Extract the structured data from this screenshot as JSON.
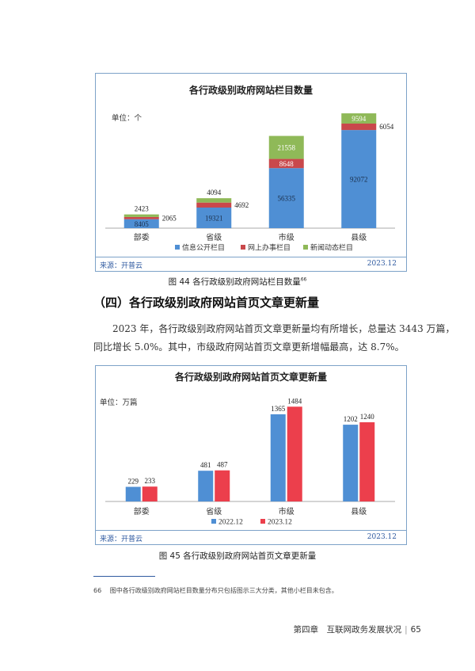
{
  "figure44": {
    "title": "各行政级别政府网站栏目数量",
    "unit": "单位：个",
    "source": "来源：开普云",
    "date": "2023.12",
    "caption": "图 44  各行政级别政府网站栏目数量",
    "caption_note": "66"
  },
  "figure45": {
    "title": "各行政级别政府网站首页文章更新量",
    "unit": "单位：万篇",
    "source": "来源：开普云",
    "date": "2023.12",
    "caption": "图 45  各行政级别政府网站首页文章更新量"
  },
  "section": {
    "heading": "（四）各行政级别政府网站首页文章更新量",
    "paragraph_lines": [
      "2023 年，各行政级别政府网站首页文章更新量均有所增长，总量达 3443 万篇，",
      "同比增长 5.0%。其中，市级政府网站首页文章更新增幅最高，达 8.7%。"
    ]
  },
  "footnote": {
    "number": "66",
    "text": "图中各行政级别政府网站栏目数量分布只包括图示三大分类，其他小栏目未包含。"
  },
  "footer": {
    "chapter": "第四章　互联网政务发展状况",
    "page": "65"
  },
  "chart_data": [
    {
      "type": "bar",
      "stacked": true,
      "categories": [
        "部委",
        "省级",
        "市级",
        "县级"
      ],
      "series": [
        {
          "name": "信息公开栏目",
          "color": "#4f8fd4",
          "values": [
            8405,
            19321,
            56335,
            92072
          ]
        },
        {
          "name": "网上办事栏目",
          "color": "#c9484b",
          "values": [
            2065,
            4692,
            8648,
            6054
          ]
        },
        {
          "name": "新闻动态栏目",
          "color": "#8fb958",
          "values": [
            2423,
            4094,
            21558,
            9594
          ]
        }
      ],
      "ylim": [
        0,
        110000
      ],
      "legend": "bottom",
      "grid": false
    },
    {
      "type": "bar",
      "categories": [
        "部委",
        "省级",
        "市级",
        "县级"
      ],
      "series": [
        {
          "name": "2022.12",
          "color": "#4f8fd4",
          "values": [
            229,
            481,
            1365,
            1202
          ]
        },
        {
          "name": "2023.12",
          "color": "#ec3f4c",
          "values": [
            233,
            487,
            1484,
            1240
          ]
        }
      ],
      "ylim": [
        0,
        1600
      ],
      "legend": "bottom",
      "grid": false
    }
  ]
}
